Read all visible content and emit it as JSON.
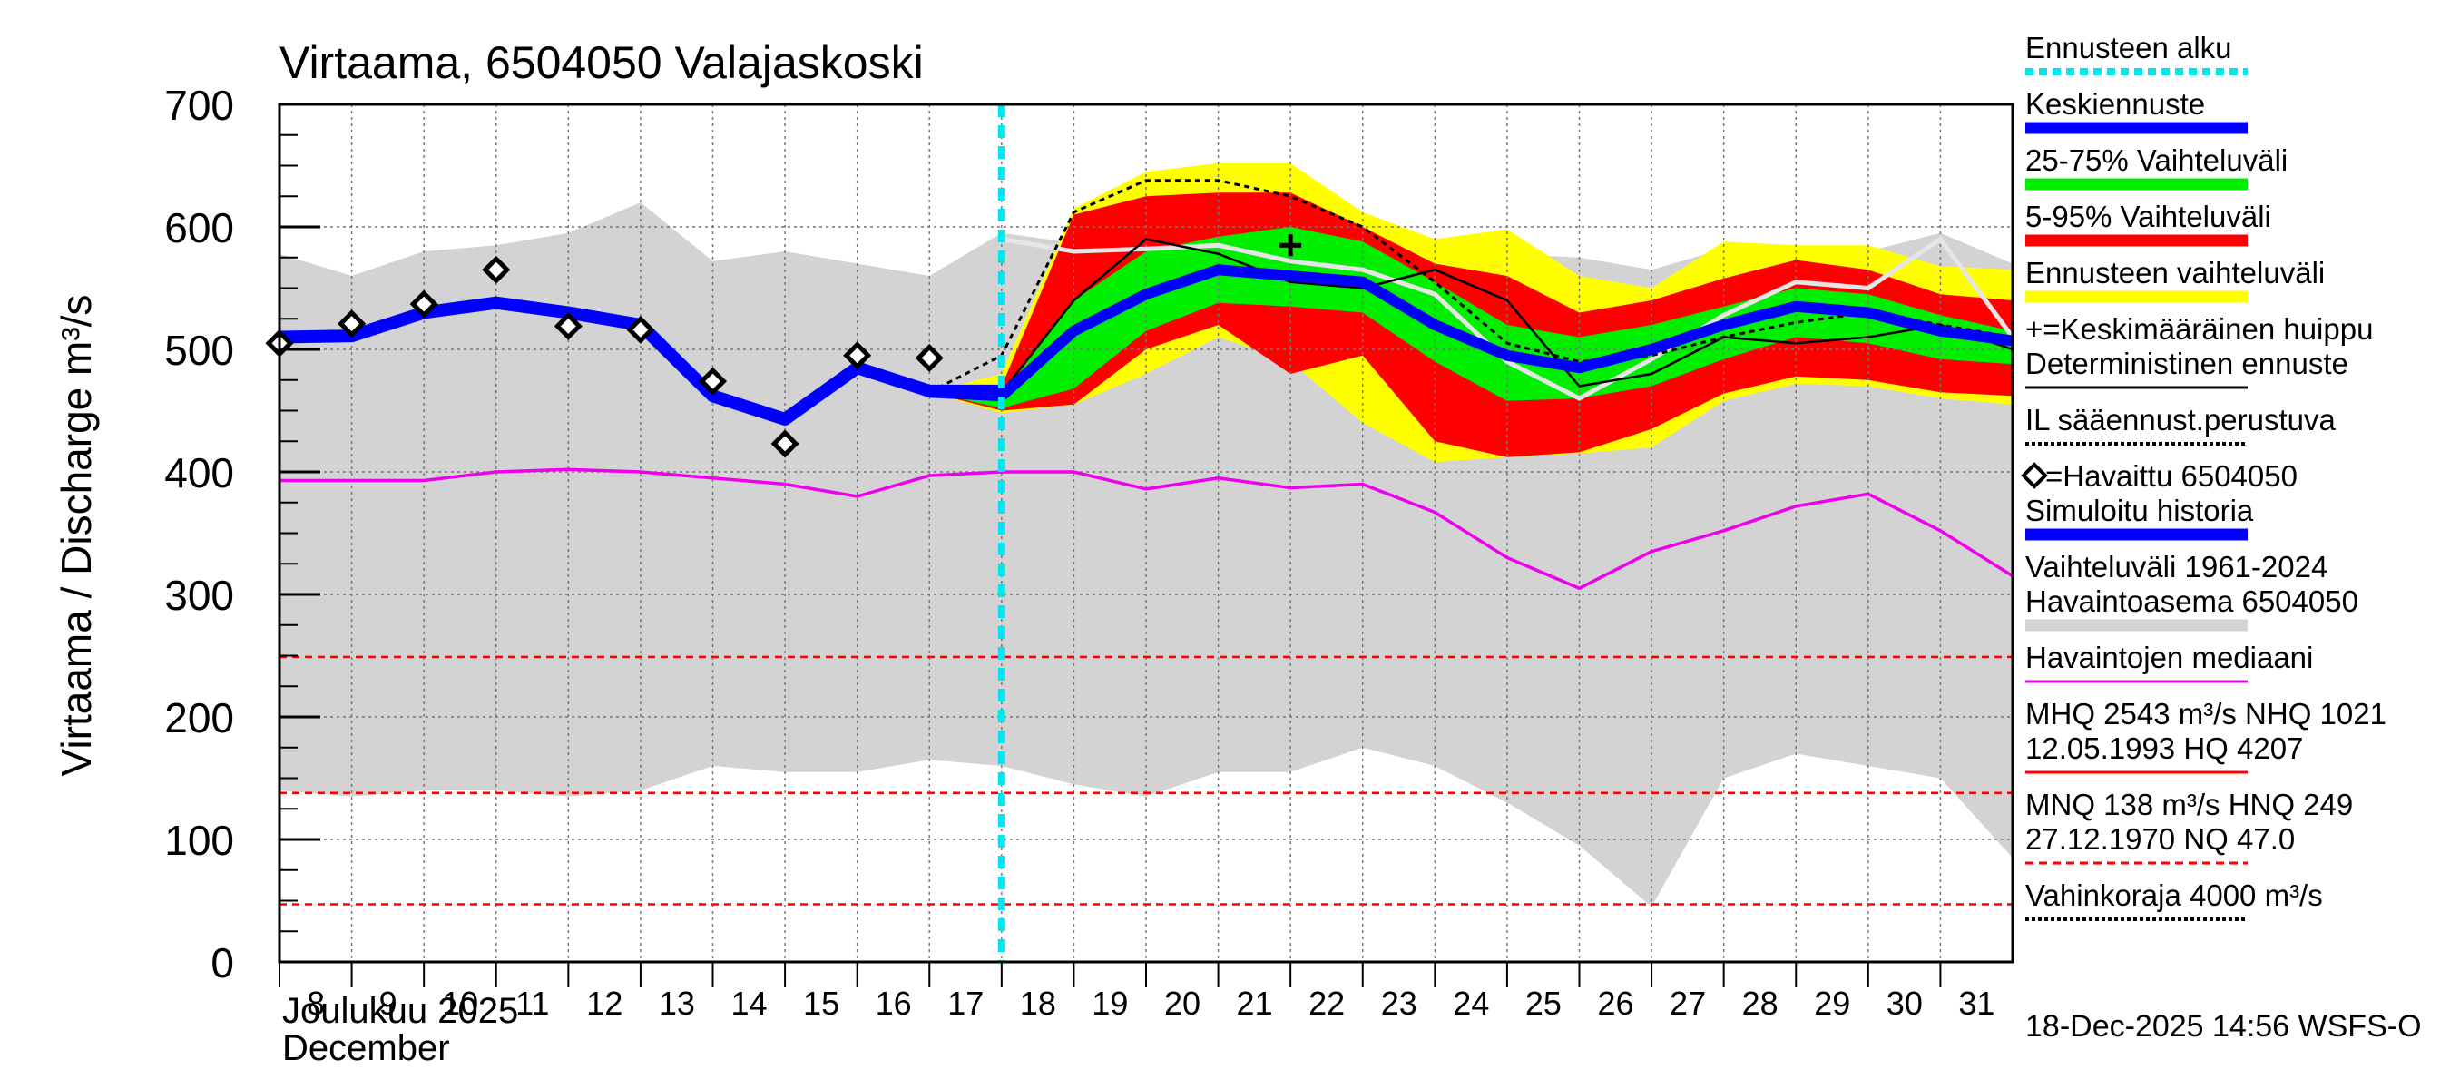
{
  "chart_data": {
    "type": "area",
    "title": "Virtaama, 6504050 Valajaskoski",
    "ylabel": "Virtaama / Discharge   m³/s",
    "ylim": [
      0,
      700
    ],
    "yticks": [
      0,
      100,
      200,
      300,
      400,
      500,
      600,
      700
    ],
    "xlim": [
      8,
      32
    ],
    "x_ticks": [
      "8",
      "9",
      "10",
      "11",
      "12",
      "13",
      "14",
      "15",
      "16",
      "17",
      "18",
      "19",
      "20",
      "21",
      "22",
      "23",
      "24",
      "25",
      "26",
      "27",
      "28",
      "29",
      "30",
      "31"
    ],
    "x_label_month": "Joulukuu  2025",
    "x_label_month_en": "December",
    "forecast_start": 18,
    "timestamp": "18-Dec-2025 14:56 WSFS-O",
    "colors": {
      "history_range": "#d3d3d3",
      "forecast_range": "#ffff00",
      "p5_95": "#ff0000",
      "p25_75": "#00ee00",
      "mean": "#0000ff",
      "median": "#ee00ee",
      "forecast_start": "#00e5ee",
      "thresholds": "#ff0000"
    },
    "history_range_band": {
      "x": [
        8,
        9,
        10,
        11,
        12,
        13,
        14,
        15,
        16,
        17,
        18,
        19,
        20,
        21,
        22,
        23,
        24,
        25,
        26,
        27,
        28,
        29,
        30,
        31,
        32
      ],
      "upper": [
        578,
        560,
        580,
        585,
        595,
        620,
        572,
        580,
        570,
        560,
        595,
        587,
        590,
        585,
        585,
        580,
        580,
        578,
        575,
        565,
        582,
        580,
        580,
        595,
        570
      ],
      "lower": [
        140,
        135,
        140,
        140,
        135,
        140,
        160,
        155,
        155,
        165,
        160,
        145,
        135,
        155,
        155,
        175,
        160,
        130,
        95,
        45,
        150,
        170,
        160,
        150,
        85
      ]
    },
    "median": {
      "x": [
        8,
        9,
        10,
        11,
        12,
        13,
        14,
        15,
        16,
        17,
        18,
        19,
        20,
        21,
        22,
        23,
        24,
        25,
        26,
        27,
        28,
        29,
        30,
        31,
        32
      ],
      "values": [
        393,
        393,
        393,
        400,
        402,
        400,
        395,
        390,
        380,
        397,
        400,
        400,
        386,
        395,
        387,
        390,
        367,
        330,
        305,
        335,
        352,
        372,
        382,
        352,
        315
      ]
    },
    "simulated_history": {
      "x": [
        8,
        9,
        10,
        11,
        12,
        13,
        14,
        15,
        16,
        17,
        18
      ],
      "values": [
        510,
        511,
        530,
        538,
        530,
        520,
        462,
        443,
        485,
        466,
        466
      ]
    },
    "observed": {
      "x": [
        8,
        9,
        10,
        11,
        12,
        13,
        14,
        15,
        16,
        17
      ],
      "values": [
        505,
        521,
        537,
        565,
        519,
        516,
        474,
        423,
        495,
        493
      ]
    },
    "forecast_range_band": {
      "x": [
        17,
        18,
        19,
        20,
        21,
        22,
        23,
        24,
        25,
        26,
        27,
        28,
        29,
        30,
        31,
        32
      ],
      "upper": [
        465,
        480,
        615,
        645,
        652,
        652,
        612,
        590,
        598,
        560,
        550,
        588,
        585,
        585,
        568,
        565
      ],
      "lower": [
        465,
        448,
        455,
        480,
        510,
        490,
        440,
        408,
        412,
        415,
        420,
        458,
        472,
        470,
        460,
        455
      ]
    },
    "p5_95_band": {
      "x": [
        17,
        18,
        19,
        20,
        21,
        22,
        23,
        24,
        25,
        26,
        27,
        28,
        29,
        30,
        31,
        32
      ],
      "upper": [
        465,
        470,
        610,
        625,
        628,
        628,
        600,
        570,
        560,
        530,
        540,
        558,
        573,
        565,
        545,
        540
      ],
      "lower": [
        465,
        450,
        455,
        500,
        520,
        480,
        495,
        425,
        412,
        416,
        435,
        464,
        478,
        475,
        465,
        462
      ]
    },
    "p25_75_band": {
      "x": [
        17,
        18,
        19,
        20,
        21,
        22,
        23,
        24,
        25,
        26,
        27,
        28,
        29,
        30,
        31,
        32
      ],
      "upper": [
        465,
        462,
        540,
        580,
        592,
        600,
        588,
        555,
        520,
        510,
        520,
        535,
        550,
        545,
        528,
        515
      ],
      "lower": [
        465,
        452,
        468,
        515,
        538,
        535,
        530,
        490,
        458,
        460,
        470,
        492,
        510,
        505,
        492,
        488
      ]
    },
    "forecast_mean": {
      "x": [
        17,
        18,
        19,
        20,
        21,
        22,
        23,
        24,
        25,
        26,
        27,
        28,
        29,
        30,
        31,
        32
      ],
      "values": [
        465,
        462,
        515,
        545,
        565,
        560,
        555,
        520,
        495,
        485,
        500,
        520,
        535,
        530,
        515,
        507
      ]
    },
    "deterministic": {
      "x": [
        17,
        18,
        19,
        20,
        21,
        22,
        23,
        24,
        25,
        26,
        27,
        28,
        29,
        30,
        31,
        32
      ],
      "values": [
        465,
        465,
        540,
        590,
        578,
        555,
        550,
        565,
        540,
        470,
        480,
        510,
        505,
        510,
        520,
        500
      ]
    },
    "il_forecast": {
      "x": [
        17,
        18,
        19,
        20,
        21,
        22,
        23,
        24,
        25,
        26,
        27,
        28,
        29,
        30,
        31,
        32
      ],
      "values": [
        465,
        495,
        612,
        638,
        638,
        625,
        600,
        555,
        505,
        490,
        495,
        510,
        522,
        530,
        520,
        510
      ]
    },
    "white_line": {
      "x": [
        18,
        19,
        20,
        21,
        22,
        23,
        24,
        25,
        26,
        27,
        28,
        29,
        30,
        31,
        32
      ],
      "values": [
        590,
        580,
        582,
        585,
        572,
        565,
        545,
        490,
        460,
        492,
        528,
        555,
        550,
        590,
        510
      ]
    },
    "mean_peak": {
      "x": 22,
      "value": 585
    },
    "thresholds": [
      {
        "name": "HNQ",
        "value": 249,
        "color": "#ff0000",
        "dash": true
      },
      {
        "name": "MNQ",
        "value": 138,
        "color": "#ff0000",
        "dash": true
      },
      {
        "name": "NQ",
        "value": 47,
        "color": "#ff0000",
        "dash": true
      }
    ],
    "legend": [
      {
        "label": "Ennusteen alku",
        "kind": "dash-line",
        "color": "#00e5ee"
      },
      {
        "label": "Keskiennuste",
        "kind": "thick-line",
        "color": "#0000ff"
      },
      {
        "label": "25-75% Vaihteluväli",
        "kind": "thick-line",
        "color": "#00ee00"
      },
      {
        "label": "5-95% Vaihteluväli",
        "kind": "thick-line",
        "color": "#ff0000"
      },
      {
        "label": "Ennusteen vaihteluväli",
        "kind": "thick-line",
        "color": "#ffff00"
      },
      {
        "label": "+=Keskimääräinen huippu",
        "kind": "text-only",
        "color": "#000000"
      },
      {
        "label": "Deterministinen ennuste",
        "kind": "thin-line",
        "color": "#000000"
      },
      {
        "label": "IL sääennust.perustuva",
        "kind": "dotted-line",
        "color": "#000000"
      },
      {
        "label": "=Havaittu 6504050",
        "kind": "text-only",
        "color": "#000000"
      },
      {
        "label": "Simuloitu historia",
        "kind": "thick-line",
        "color": "#0000ff"
      },
      {
        "label": "Vaihteluväli 1961-2024",
        "label2": "Havaintoasema 6504050",
        "kind": "thick-line",
        "color": "#d3d3d3"
      },
      {
        "label": "Havaintojen mediaani",
        "kind": "thin-line",
        "color": "#ee00ee"
      },
      {
        "label": "MHQ 2543 m³/s NHQ 1021",
        "label2": "12.05.1993 HQ 4207",
        "kind": "thin-line",
        "color": "#ff0000"
      },
      {
        "label": "MNQ  138 m³/s HNQ  249",
        "label2": "27.12.1970 NQ 47.0",
        "kind": "dash-line",
        "color": "#ff0000"
      },
      {
        "label": "Vahinkoraja 4000 m³/s",
        "kind": "dotted-line",
        "color": "#000000"
      }
    ]
  }
}
